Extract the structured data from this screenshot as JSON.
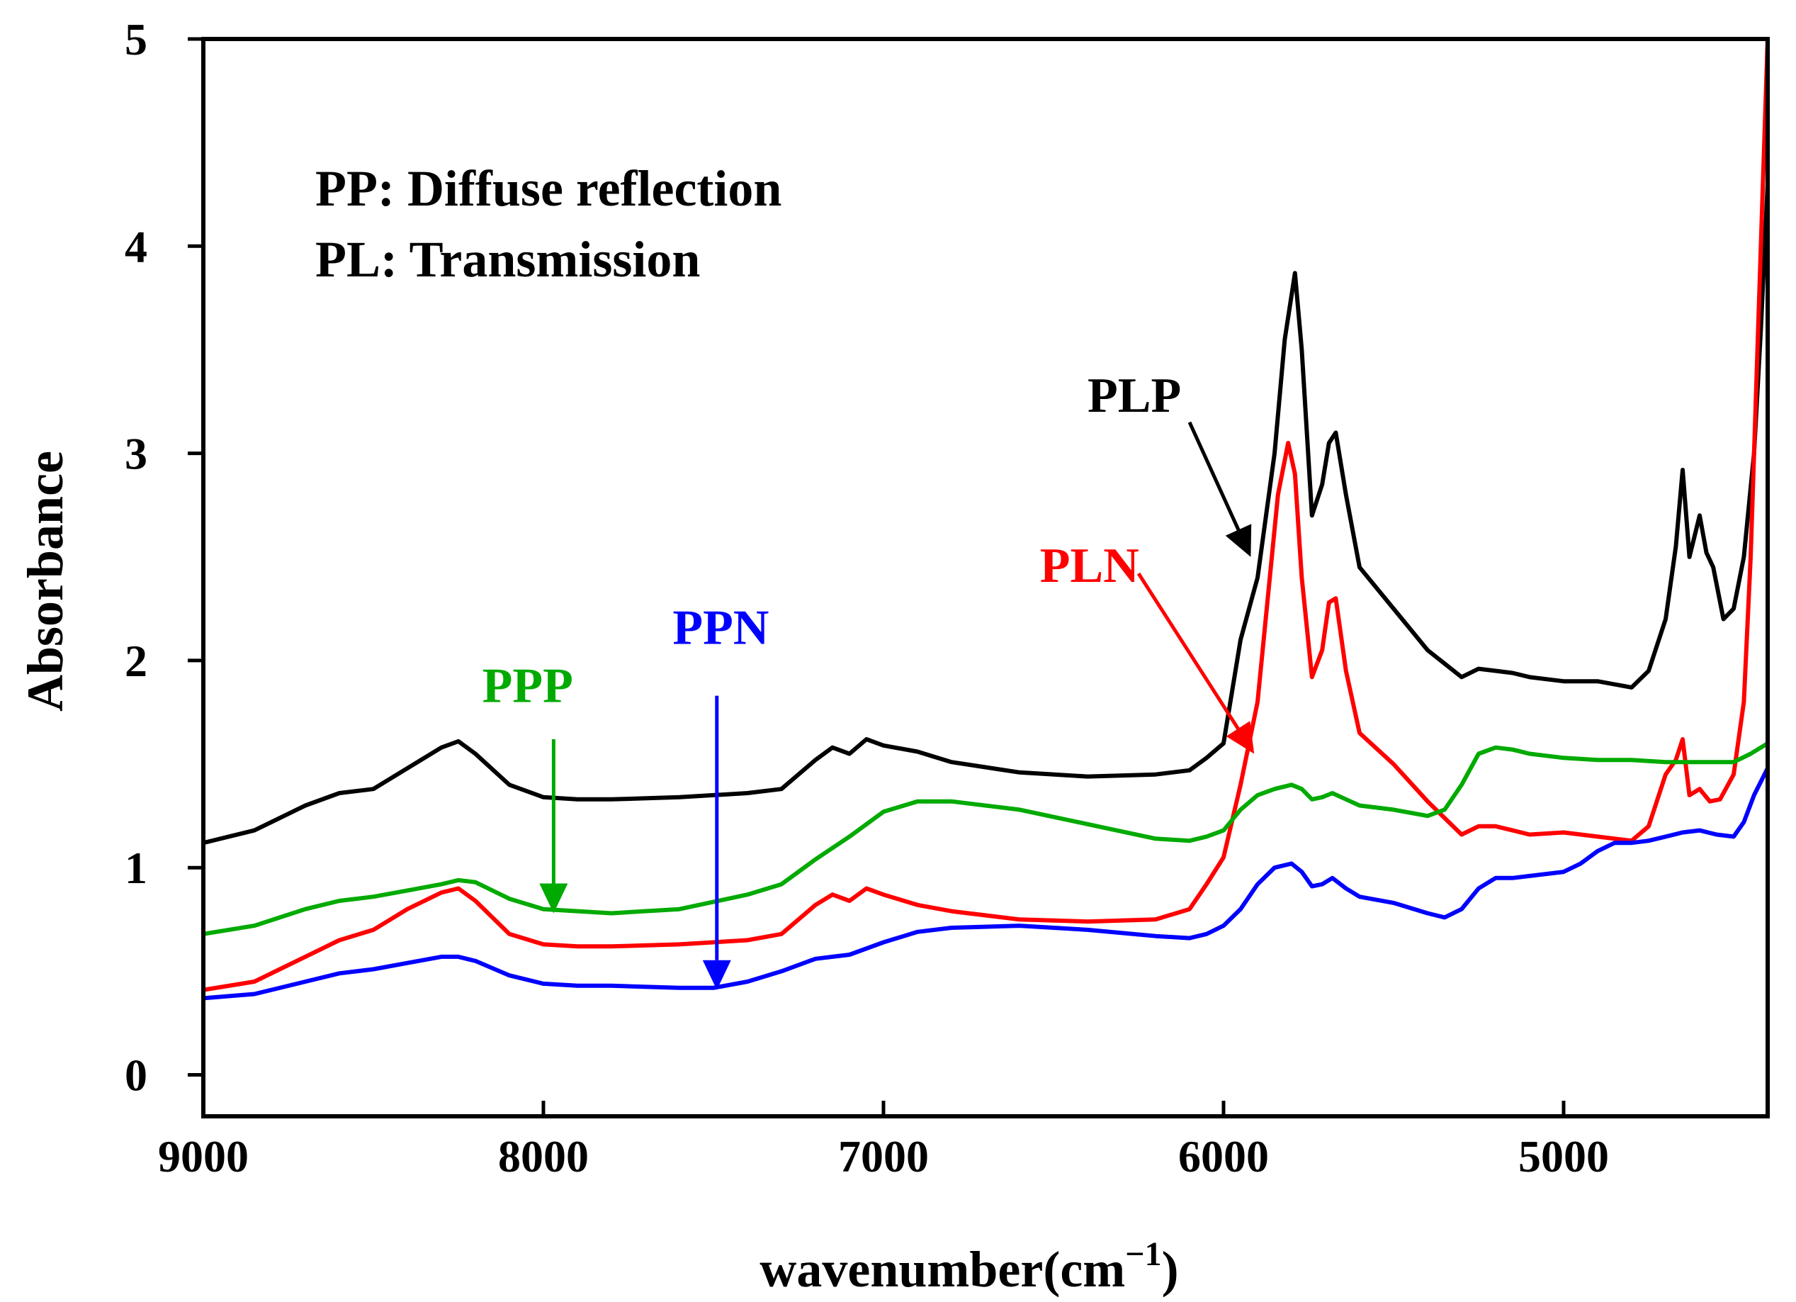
{
  "chart_data": {
    "type": "line",
    "title": "",
    "xlabel": "wavenumber(cm",
    "xlabel_sup": "−1",
    "xlabel_close": ")",
    "ylabel": "Absorbance",
    "xlim": [
      9000,
      4400
    ],
    "ylim": [
      -0.2,
      5.0
    ],
    "xticks": [
      9000,
      8000,
      7000,
      6000,
      5000
    ],
    "xtick_labels": [
      "9000",
      "8000",
      "7000",
      "6000",
      "5000"
    ],
    "yticks": [
      0,
      1,
      2,
      3,
      4,
      5
    ],
    "ytick_labels": [
      "0",
      "1",
      "2",
      "3",
      "4",
      "5"
    ],
    "annotations": {
      "line1": "PP: Diffuse reflection",
      "line2": "PL: Transmission"
    },
    "series": [
      {
        "name": "PLP",
        "color": "#000000",
        "label_at": [
          6400,
          3.2
        ],
        "arrow_from": [
          6100,
          3.15
        ],
        "arrow_to": [
          5920,
          2.5
        ],
        "points": [
          [
            9000,
            1.12
          ],
          [
            8850,
            1.18
          ],
          [
            8700,
            1.3
          ],
          [
            8600,
            1.36
          ],
          [
            8500,
            1.38
          ],
          [
            8400,
            1.48
          ],
          [
            8300,
            1.58
          ],
          [
            8250,
            1.61
          ],
          [
            8200,
            1.55
          ],
          [
            8100,
            1.4
          ],
          [
            8000,
            1.34
          ],
          [
            7900,
            1.33
          ],
          [
            7800,
            1.33
          ],
          [
            7600,
            1.34
          ],
          [
            7400,
            1.36
          ],
          [
            7300,
            1.38
          ],
          [
            7200,
            1.52
          ],
          [
            7150,
            1.58
          ],
          [
            7100,
            1.55
          ],
          [
            7050,
            1.62
          ],
          [
            7000,
            1.59
          ],
          [
            6900,
            1.56
          ],
          [
            6800,
            1.51
          ],
          [
            6600,
            1.46
          ],
          [
            6400,
            1.44
          ],
          [
            6200,
            1.45
          ],
          [
            6100,
            1.47
          ],
          [
            6050,
            1.53
          ],
          [
            6000,
            1.6
          ],
          [
            5950,
            2.1
          ],
          [
            5900,
            2.4
          ],
          [
            5850,
            3.0
          ],
          [
            5820,
            3.55
          ],
          [
            5790,
            3.87
          ],
          [
            5770,
            3.5
          ],
          [
            5740,
            2.7
          ],
          [
            5710,
            2.85
          ],
          [
            5690,
            3.05
          ],
          [
            5670,
            3.1
          ],
          [
            5640,
            2.8
          ],
          [
            5600,
            2.45
          ],
          [
            5500,
            2.25
          ],
          [
            5400,
            2.05
          ],
          [
            5300,
            1.92
          ],
          [
            5250,
            1.96
          ],
          [
            5200,
            1.95
          ],
          [
            5150,
            1.94
          ],
          [
            5100,
            1.92
          ],
          [
            5000,
            1.9
          ],
          [
            4900,
            1.9
          ],
          [
            4800,
            1.87
          ],
          [
            4750,
            1.95
          ],
          [
            4700,
            2.2
          ],
          [
            4670,
            2.55
          ],
          [
            4650,
            2.92
          ],
          [
            4630,
            2.5
          ],
          [
            4600,
            2.7
          ],
          [
            4580,
            2.52
          ],
          [
            4560,
            2.45
          ],
          [
            4530,
            2.2
          ],
          [
            4500,
            2.25
          ],
          [
            4470,
            2.5
          ],
          [
            4440,
            3.0
          ],
          [
            4420,
            3.6
          ],
          [
            4400,
            4.3
          ]
        ]
      },
      {
        "name": "PLN",
        "color": "#ff0000",
        "label_at": [
          6540,
          2.38
        ],
        "arrow_from": [
          6250,
          2.42
        ],
        "arrow_to": [
          5910,
          1.55
        ],
        "points": [
          [
            9000,
            0.41
          ],
          [
            8850,
            0.45
          ],
          [
            8700,
            0.57
          ],
          [
            8600,
            0.65
          ],
          [
            8500,
            0.7
          ],
          [
            8400,
            0.8
          ],
          [
            8300,
            0.88
          ],
          [
            8250,
            0.9
          ],
          [
            8200,
            0.84
          ],
          [
            8100,
            0.68
          ],
          [
            8000,
            0.63
          ],
          [
            7900,
            0.62
          ],
          [
            7800,
            0.62
          ],
          [
            7600,
            0.63
          ],
          [
            7400,
            0.65
          ],
          [
            7300,
            0.68
          ],
          [
            7200,
            0.82
          ],
          [
            7150,
            0.87
          ],
          [
            7100,
            0.84
          ],
          [
            7050,
            0.9
          ],
          [
            7000,
            0.87
          ],
          [
            6900,
            0.82
          ],
          [
            6800,
            0.79
          ],
          [
            6600,
            0.75
          ],
          [
            6400,
            0.74
          ],
          [
            6200,
            0.75
          ],
          [
            6100,
            0.8
          ],
          [
            6050,
            0.92
          ],
          [
            6000,
            1.05
          ],
          [
            5950,
            1.4
          ],
          [
            5900,
            1.8
          ],
          [
            5870,
            2.3
          ],
          [
            5840,
            2.8
          ],
          [
            5810,
            3.05
          ],
          [
            5790,
            2.9
          ],
          [
            5770,
            2.4
          ],
          [
            5740,
            1.92
          ],
          [
            5710,
            2.05
          ],
          [
            5690,
            2.28
          ],
          [
            5670,
            2.3
          ],
          [
            5640,
            1.95
          ],
          [
            5600,
            1.65
          ],
          [
            5500,
            1.5
          ],
          [
            5400,
            1.32
          ],
          [
            5300,
            1.16
          ],
          [
            5250,
            1.2
          ],
          [
            5200,
            1.2
          ],
          [
            5150,
            1.18
          ],
          [
            5100,
            1.16
          ],
          [
            5000,
            1.17
          ],
          [
            4900,
            1.15
          ],
          [
            4800,
            1.13
          ],
          [
            4750,
            1.2
          ],
          [
            4700,
            1.45
          ],
          [
            4670,
            1.52
          ],
          [
            4650,
            1.62
          ],
          [
            4630,
            1.35
          ],
          [
            4600,
            1.38
          ],
          [
            4570,
            1.32
          ],
          [
            4540,
            1.33
          ],
          [
            4500,
            1.45
          ],
          [
            4470,
            1.8
          ],
          [
            4450,
            2.5
          ],
          [
            4430,
            3.5
          ],
          [
            4410,
            4.5
          ],
          [
            4400,
            5.0
          ]
        ]
      },
      {
        "name": "PPP",
        "color": "#00aa00",
        "label_at": [
          8180,
          1.8
        ],
        "arrow_from": [
          7970,
          1.62
        ],
        "arrow_to": [
          7970,
          0.78
        ],
        "points": [
          [
            9000,
            0.68
          ],
          [
            8850,
            0.72
          ],
          [
            8700,
            0.8
          ],
          [
            8600,
            0.84
          ],
          [
            8500,
            0.86
          ],
          [
            8400,
            0.89
          ],
          [
            8300,
            0.92
          ],
          [
            8250,
            0.94
          ],
          [
            8200,
            0.93
          ],
          [
            8100,
            0.85
          ],
          [
            8000,
            0.8
          ],
          [
            7900,
            0.79
          ],
          [
            7800,
            0.78
          ],
          [
            7600,
            0.8
          ],
          [
            7400,
            0.87
          ],
          [
            7300,
            0.92
          ],
          [
            7200,
            1.04
          ],
          [
            7100,
            1.15
          ],
          [
            7000,
            1.27
          ],
          [
            6900,
            1.32
          ],
          [
            6800,
            1.32
          ],
          [
            6600,
            1.28
          ],
          [
            6400,
            1.21
          ],
          [
            6200,
            1.14
          ],
          [
            6100,
            1.13
          ],
          [
            6050,
            1.15
          ],
          [
            6000,
            1.18
          ],
          [
            5950,
            1.28
          ],
          [
            5900,
            1.35
          ],
          [
            5850,
            1.38
          ],
          [
            5800,
            1.4
          ],
          [
            5770,
            1.38
          ],
          [
            5740,
            1.33
          ],
          [
            5710,
            1.34
          ],
          [
            5680,
            1.36
          ],
          [
            5640,
            1.33
          ],
          [
            5600,
            1.3
          ],
          [
            5500,
            1.28
          ],
          [
            5400,
            1.25
          ],
          [
            5350,
            1.28
          ],
          [
            5300,
            1.4
          ],
          [
            5250,
            1.55
          ],
          [
            5200,
            1.58
          ],
          [
            5150,
            1.57
          ],
          [
            5100,
            1.55
          ],
          [
            5000,
            1.53
          ],
          [
            4900,
            1.52
          ],
          [
            4800,
            1.52
          ],
          [
            4700,
            1.51
          ],
          [
            4600,
            1.51
          ],
          [
            4500,
            1.51
          ],
          [
            4450,
            1.55
          ],
          [
            4400,
            1.6
          ]
        ]
      },
      {
        "name": "PPN",
        "color": "#0000ff",
        "label_at": [
          7620,
          2.08
        ],
        "arrow_from": [
          7490,
          1.83
        ],
        "arrow_to": [
          7490,
          0.41
        ],
        "points": [
          [
            9000,
            0.37
          ],
          [
            8850,
            0.39
          ],
          [
            8700,
            0.45
          ],
          [
            8600,
            0.49
          ],
          [
            8500,
            0.51
          ],
          [
            8400,
            0.54
          ],
          [
            8300,
            0.57
          ],
          [
            8250,
            0.57
          ],
          [
            8200,
            0.55
          ],
          [
            8100,
            0.48
          ],
          [
            8000,
            0.44
          ],
          [
            7900,
            0.43
          ],
          [
            7800,
            0.43
          ],
          [
            7600,
            0.42
          ],
          [
            7500,
            0.42
          ],
          [
            7400,
            0.45
          ],
          [
            7300,
            0.5
          ],
          [
            7200,
            0.56
          ],
          [
            7150,
            0.57
          ],
          [
            7100,
            0.58
          ],
          [
            7000,
            0.64
          ],
          [
            6900,
            0.69
          ],
          [
            6800,
            0.71
          ],
          [
            6600,
            0.72
          ],
          [
            6400,
            0.7
          ],
          [
            6200,
            0.67
          ],
          [
            6100,
            0.66
          ],
          [
            6050,
            0.68
          ],
          [
            6000,
            0.72
          ],
          [
            5950,
            0.8
          ],
          [
            5900,
            0.92
          ],
          [
            5850,
            1.0
          ],
          [
            5800,
            1.02
          ],
          [
            5770,
            0.98
          ],
          [
            5740,
            0.91
          ],
          [
            5710,
            0.92
          ],
          [
            5680,
            0.95
          ],
          [
            5640,
            0.9
          ],
          [
            5600,
            0.86
          ],
          [
            5500,
            0.83
          ],
          [
            5400,
            0.78
          ],
          [
            5350,
            0.76
          ],
          [
            5300,
            0.8
          ],
          [
            5250,
            0.9
          ],
          [
            5200,
            0.95
          ],
          [
            5150,
            0.95
          ],
          [
            5100,
            0.96
          ],
          [
            5000,
            0.98
          ],
          [
            4950,
            1.02
          ],
          [
            4900,
            1.08
          ],
          [
            4850,
            1.12
          ],
          [
            4800,
            1.12
          ],
          [
            4750,
            1.13
          ],
          [
            4700,
            1.15
          ],
          [
            4650,
            1.17
          ],
          [
            4600,
            1.18
          ],
          [
            4550,
            1.16
          ],
          [
            4500,
            1.15
          ],
          [
            4470,
            1.22
          ],
          [
            4440,
            1.35
          ],
          [
            4400,
            1.48
          ]
        ]
      }
    ]
  }
}
